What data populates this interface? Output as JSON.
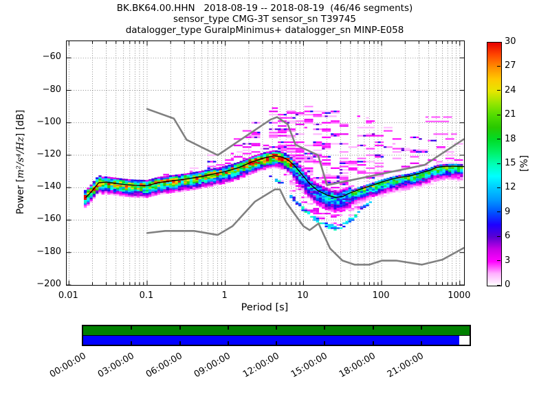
{
  "title": {
    "lines": [
      "BK.BK64.00.HHN   2018-08-19 -- 2018-08-19  (46/46 segments)",
      "sensor_type CMG-3T sensor_sn T39745",
      "datalogger_type GuralpMinimus+ datalogger_sn MINP-E058"
    ]
  },
  "chart_data": {
    "type": "heatmap",
    "description": "Probabilistic power spectral density (PPSD) of seismic channel BK.BK64.00.HHN, probability color histogram with Peterson NHNM/NLNM gray reference curves and black mode line",
    "xlabel": "Period [s]",
    "ylabel_prefix": "Power [",
    "ylabel_math": "m²/s⁴/Hz",
    "ylabel_suffix": "] [dB]",
    "xscale": "log",
    "xlim": [
      0.00937,
      1120
    ],
    "ylim": [
      -200,
      -50
    ],
    "grid": "x major+minor dotted, y major dotted",
    "x_ticks": [
      {
        "label": "0.01",
        "value": 0.01
      },
      {
        "label": "0.1",
        "value": 0.1
      },
      {
        "label": "1",
        "value": 1
      },
      {
        "label": "10",
        "value": 10
      },
      {
        "label": "100",
        "value": 100
      },
      {
        "label": "1000",
        "value": 1000
      }
    ],
    "y_ticks": [
      {
        "label": "−60",
        "value": -60
      },
      {
        "label": "−80",
        "value": -80
      },
      {
        "label": "−100",
        "value": -100
      },
      {
        "label": "−120",
        "value": -120
      },
      {
        "label": "−140",
        "value": -140
      },
      {
        "label": "−160",
        "value": -160
      },
      {
        "label": "−180",
        "value": -180
      },
      {
        "label": "−200",
        "value": -200
      }
    ],
    "colorbar": {
      "label": "[%]",
      "min": 0,
      "max": 30,
      "ticks": [
        {
          "label": "30",
          "value": 30
        },
        {
          "label": "27",
          "value": 27
        },
        {
          "label": "24",
          "value": 24
        },
        {
          "label": "21",
          "value": 21
        },
        {
          "label": "18",
          "value": 18
        },
        {
          "label": "15",
          "value": 15
        },
        {
          "label": "12",
          "value": 12
        },
        {
          "label": "9",
          "value": 9
        },
        {
          "label": "6",
          "value": 6
        },
        {
          "label": "3",
          "value": 3
        },
        {
          "label": "0",
          "value": 0
        }
      ],
      "stops": [
        [
          0,
          "#ffffff"
        ],
        [
          1.5,
          "#ffb0ff"
        ],
        [
          3,
          "#ff00ff"
        ],
        [
          4.5,
          "#c800e6"
        ],
        [
          6,
          "#5a00d2"
        ],
        [
          7.5,
          "#1e00ff"
        ],
        [
          9,
          "#0050ff"
        ],
        [
          10.5,
          "#0096ff"
        ],
        [
          12,
          "#00c8ff"
        ],
        [
          13.5,
          "#00ffff"
        ],
        [
          15,
          "#00ffb4"
        ],
        [
          16.5,
          "#00f064"
        ],
        [
          18,
          "#00dc28"
        ],
        [
          19.5,
          "#28c800"
        ],
        [
          21,
          "#50dc00"
        ],
        [
          22.5,
          "#96e600"
        ],
        [
          24,
          "#e6e600"
        ],
        [
          25.5,
          "#ffc800"
        ],
        [
          27,
          "#ff8c00"
        ],
        [
          28.5,
          "#ff4600"
        ],
        [
          30,
          "#e60000"
        ]
      ]
    },
    "noise_models": {
      "color": "#808080",
      "nhnm": [
        [
          0.1,
          -91.5
        ],
        [
          0.22,
          -97.4
        ],
        [
          0.32,
          -110.5
        ],
        [
          0.8,
          -120.0
        ],
        [
          3.8,
          -98.0
        ],
        [
          4.6,
          -96.5
        ],
        [
          6.3,
          -101.0
        ],
        [
          7.9,
          -113.5
        ],
        [
          15.4,
          -120.0
        ],
        [
          20.0,
          -138.5
        ],
        [
          354.8,
          -126.0
        ],
        [
          1120,
          -110.2
        ]
      ],
      "nlnm": [
        [
          0.1,
          -168.0
        ],
        [
          0.17,
          -166.7
        ],
        [
          0.4,
          -166.7
        ],
        [
          0.8,
          -169.2
        ],
        [
          1.24,
          -163.7
        ],
        [
          2.4,
          -148.6
        ],
        [
          4.3,
          -141.1
        ],
        [
          5.0,
          -141.1
        ],
        [
          6.0,
          -149.0
        ],
        [
          10.0,
          -163.8
        ],
        [
          12.0,
          -166.2
        ],
        [
          15.6,
          -162.1
        ],
        [
          21.9,
          -177.5
        ],
        [
          31.6,
          -185.0
        ],
        [
          45.0,
          -187.5
        ],
        [
          70.0,
          -187.5
        ],
        [
          101.0,
          -185.0
        ],
        [
          154.0,
          -185.0
        ],
        [
          328.0,
          -187.5
        ],
        [
          600.0,
          -184.4
        ],
        [
          1120,
          -177.2
        ]
      ]
    },
    "mode_line": {
      "color": "#000000",
      "points": [
        [
          0.0165,
          -146
        ],
        [
          0.019,
          -143
        ],
        [
          0.024,
          -137
        ],
        [
          0.03,
          -136.6
        ],
        [
          0.04,
          -137.4
        ],
        [
          0.05,
          -138
        ],
        [
          0.07,
          -138.6
        ],
        [
          0.1,
          -138.8
        ],
        [
          0.14,
          -136.9
        ],
        [
          0.2,
          -135.9
        ],
        [
          0.3,
          -134.9
        ],
        [
          0.5,
          -133.1
        ],
        [
          0.7,
          -131.6
        ],
        [
          1.0,
          -130.1
        ],
        [
          1.5,
          -127.6
        ],
        [
          2.2,
          -124.1
        ],
        [
          3.2,
          -121.6
        ],
        [
          4.2,
          -120.4
        ],
        [
          5.0,
          -120.8
        ],
        [
          5.8,
          -121.9
        ],
        [
          6.6,
          -123.6
        ],
        [
          7.9,
          -127.1
        ],
        [
          10,
          -133
        ],
        [
          12,
          -137.6
        ],
        [
          15,
          -141.6
        ],
        [
          20,
          -144.6
        ],
        [
          26,
          -146.1
        ],
        [
          32,
          -145.4
        ],
        [
          38,
          -143.6
        ],
        [
          50,
          -141.4
        ],
        [
          70,
          -139.1
        ],
        [
          100,
          -136.6
        ],
        [
          140,
          -134.6
        ],
        [
          170,
          -133.7
        ],
        [
          220,
          -133
        ],
        [
          310,
          -131.1
        ],
        [
          420,
          -129.2
        ],
        [
          500,
          -127.6
        ],
        [
          600,
          -127
        ],
        [
          800,
          -126.8
        ],
        [
          1120,
          -127
        ]
      ]
    },
    "envelopes": {
      "upper": [
        [
          0.09,
          -134.5
        ],
        [
          0.13,
          -131
        ],
        [
          0.2,
          -129
        ],
        [
          0.3,
          -126
        ],
        [
          0.5,
          -122
        ],
        [
          0.7,
          -118
        ],
        [
          1.0,
          -114
        ],
        [
          1.4,
          -108
        ],
        [
          2.0,
          -101
        ],
        [
          2.8,
          -95
        ],
        [
          4.0,
          -90.5
        ],
        [
          6.3,
          -89.5
        ],
        [
          10,
          -90
        ],
        [
          16,
          -89.5
        ],
        [
          22,
          -91
        ],
        [
          32,
          -92.5
        ],
        [
          50,
          -95
        ],
        [
          70,
          -97
        ],
        [
          100,
          -99
        ],
        [
          160,
          -102
        ],
        [
          250,
          -104
        ],
        [
          400,
          -105
        ],
        [
          700,
          -106
        ],
        [
          1120,
          -107
        ]
      ],
      "lower": [
        [
          3.5,
          -132
        ],
        [
          5,
          -138
        ],
        [
          6.3,
          -144
        ],
        [
          7.9,
          -150
        ],
        [
          10,
          -155
        ],
        [
          12.6,
          -159
        ],
        [
          16,
          -162
        ],
        [
          20,
          -165
        ],
        [
          28,
          -166.5
        ],
        [
          35,
          -164
        ],
        [
          50,
          -157
        ],
        [
          63,
          -152
        ],
        [
          79,
          -148
        ],
        [
          100,
          -145
        ],
        [
          160,
          -141
        ],
        [
          250,
          -139
        ],
        [
          400,
          -137.5
        ],
        [
          630,
          -136
        ],
        [
          1120,
          -135
        ]
      ]
    },
    "band_regions": [
      {
        "t_max": 0.025,
        "peak": 29,
        "sa": 2.2,
        "sb": 2.6,
        "above": 4,
        "below": 6
      },
      {
        "t_max": 2.0,
        "peak": 23,
        "sa": 1.8,
        "sb": 3.2,
        "above": 3,
        "below": 7
      },
      {
        "t_max": 7.0,
        "peak": 30,
        "sa": 1.6,
        "sb": 3.0,
        "above": 3,
        "below": 7
      },
      {
        "t_max": 40,
        "peak": 12,
        "sa": 2.5,
        "sb": 5.0,
        "above": 4,
        "below": 9
      },
      {
        "t_max": 1200,
        "peak": 18,
        "sa": 0.8,
        "sb": 3.5,
        "above": 2,
        "below": 9
      }
    ],
    "cloud_density": [
      [
        -1.05,
        0.1
      ],
      [
        -0.5,
        0.18
      ],
      [
        0,
        0.3
      ],
      [
        0.3,
        0.5
      ],
      [
        1.3,
        0.5
      ],
      [
        1.8,
        0.38
      ],
      [
        2.3,
        0.26
      ],
      [
        3.05,
        0.2
      ]
    ],
    "outlier_segments": [
      {
        "t1": 380,
        "t2": 820,
        "db": -96.5,
        "p": 2.2
      },
      {
        "t1": 380,
        "t2": 760,
        "db": -99.2,
        "p": 2.2
      },
      {
        "t1": 480,
        "t2": 900,
        "db": -107,
        "p": 2.2
      }
    ],
    "data_t_start": 0.0162,
    "period_step_decades": 0.0376
  },
  "timeline": {
    "labels": [
      "00:00:00",
      "03:00:00",
      "06:00:00",
      "09:00:00",
      "12:00:00",
      "15:00:00",
      "18:00:00",
      "21:00:00"
    ],
    "top_row_color": "#008000",
    "bottom_row_color": "#0000ff",
    "bottom_row_fill_fraction": 0.974,
    "tick_interval_hours": 3,
    "total_hours": 24
  }
}
